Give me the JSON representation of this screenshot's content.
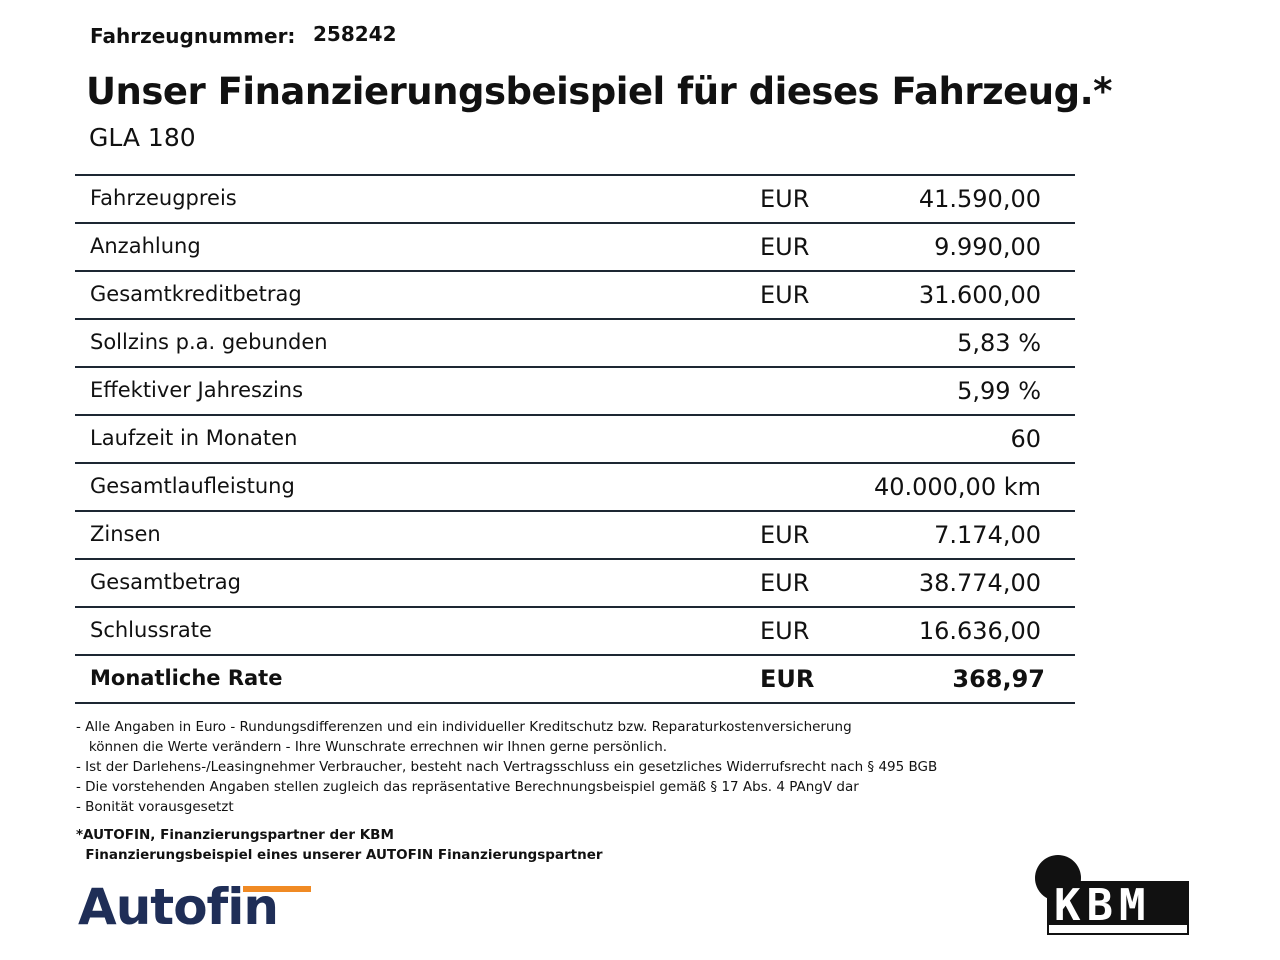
{
  "header": {
    "label": "Fahrzeugnummer:",
    "number": "258242",
    "title": "Unser Finanzierungsbeispiel für dieses Fahrzeug.*",
    "model": "GLA 180"
  },
  "table": {
    "rows": [
      {
        "label": "Fahrzeugpreis",
        "currency": "EUR",
        "value": "41.590,00"
      },
      {
        "label": "Anzahlung",
        "currency": "EUR",
        "value": "9.990,00"
      },
      {
        "label": "Gesamtkreditbetrag",
        "currency": "EUR",
        "value": "31.600,00"
      },
      {
        "label": "Sollzins p.a. gebunden",
        "value": "5,83 %"
      },
      {
        "label": "Effektiver Jahreszins",
        "value": "5,99 %"
      },
      {
        "label": "Laufzeit in Monaten",
        "value": "60"
      },
      {
        "label": "Gesamtlaufleistung",
        "value": "40.000,00 km"
      },
      {
        "label": "Zinsen",
        "currency": "EUR",
        "value": "7.174,00"
      },
      {
        "label": "Gesamtbetrag",
        "currency": "EUR",
        "value": "38.774,00"
      },
      {
        "label": "Schlussrate",
        "currency": "EUR",
        "value": "16.636,00"
      },
      {
        "label": "Monatliche Rate",
        "currency": "EUR",
        "value": "368,97",
        "bold": true
      }
    ]
  },
  "notes": [
    "- Alle Angaben in Euro - Rundungsdifferenzen und ein individueller Kreditschutz bzw. Reparaturkostenversicherung",
    "   können die Werte verändern - Ihre Wunschrate errechnen wir Ihnen gerne persönlich.",
    "- Ist der Darlehens-/Leasingnehmer Verbraucher, besteht nach Vertragsschluss ein gesetzliches Widerrufsrecht nach § 495 BGB",
    "- Die vorstehenden Angaben stellen zugleich das repräsentative Berechnungsbeispiel gemäß § 17 Abs. 4 PAngV dar",
    "- Bonität vorausgesetzt"
  ],
  "footer": [
    "*AUTOFIN, Finanzierungspartner der KBM",
    "  Finanzierungsbeispiel eines unserer AUTOFIN Finanzierungspartner"
  ],
  "logos": {
    "autofin": "Autofin",
    "kbm": "KBM"
  }
}
